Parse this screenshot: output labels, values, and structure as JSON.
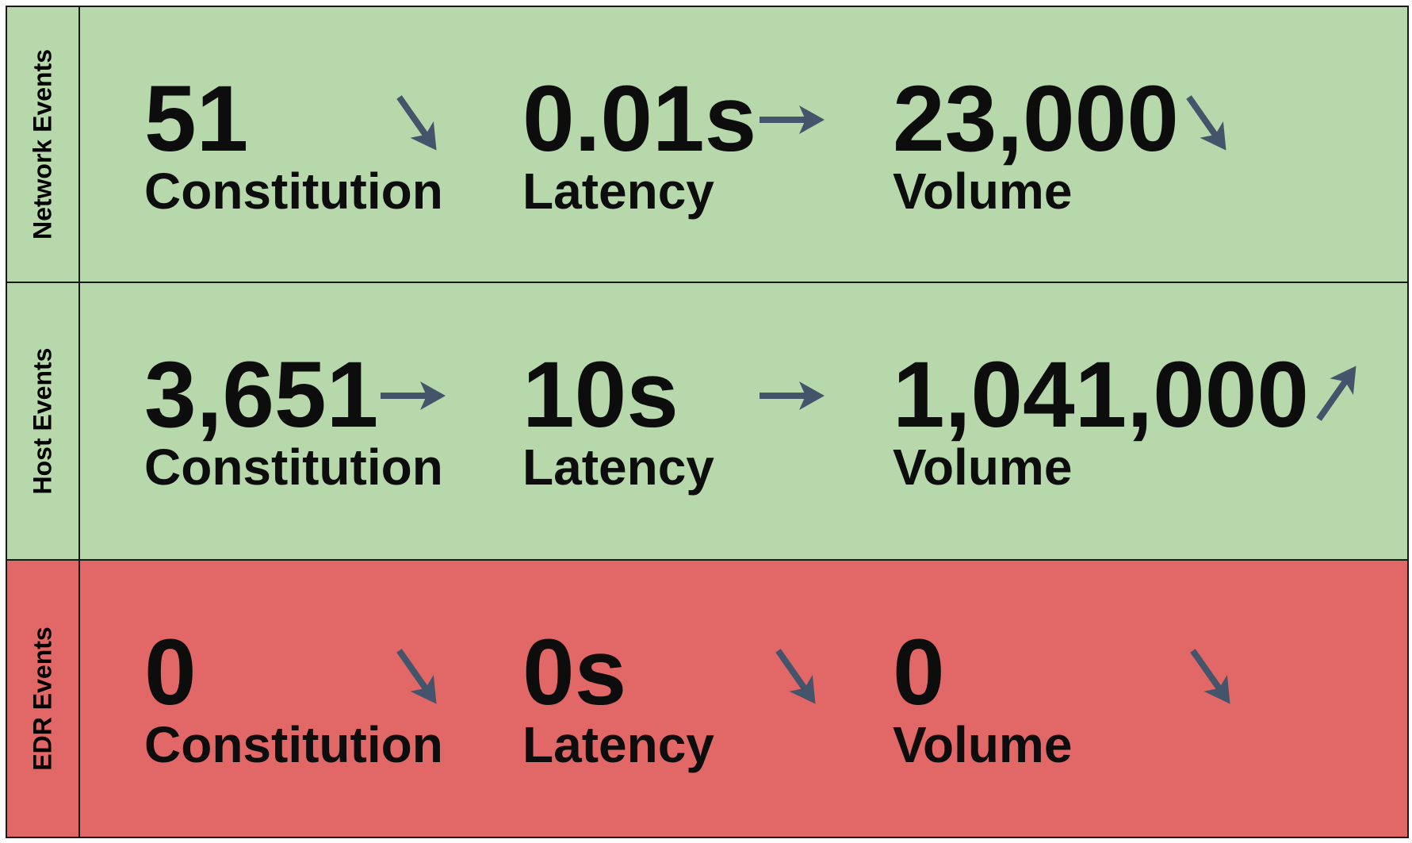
{
  "colors": {
    "good": "#b7d8ab",
    "bad": "#e26767",
    "arrow": "#44546a"
  },
  "rows": [
    {
      "label": "Network Events",
      "status": "good",
      "metrics": [
        {
          "value": "51",
          "label": "Constitution",
          "trend": "arrow-down-right-icon"
        },
        {
          "value": "0.01s",
          "label": "Latency",
          "trend": "arrow-right-icon"
        },
        {
          "value": "23,000",
          "label": "Volume",
          "trend": "arrow-down-right-icon"
        }
      ]
    },
    {
      "label": "Host Events",
      "status": "good",
      "metrics": [
        {
          "value": "3,651",
          "label": "Constitution",
          "trend": "arrow-right-icon"
        },
        {
          "value": "10s",
          "label": "Latency",
          "trend": "arrow-right-icon"
        },
        {
          "value": "1,041,000",
          "label": "Volume",
          "trend": "arrow-up-right-icon"
        }
      ]
    },
    {
      "label": "EDR Events",
      "status": "bad",
      "metrics": [
        {
          "value": "0",
          "label": "Constitution",
          "trend": "arrow-down-right-icon"
        },
        {
          "value": "0s",
          "label": "Latency",
          "trend": "arrow-down-right-icon"
        },
        {
          "value": "0",
          "label": "Volume",
          "trend": "arrow-down-right-icon"
        }
      ]
    }
  ]
}
